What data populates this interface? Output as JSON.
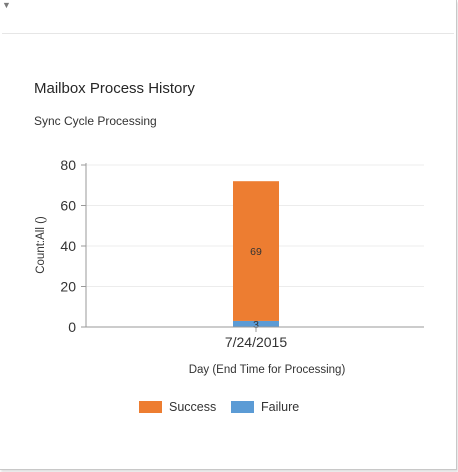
{
  "card": {
    "title": "Mailbox Process History",
    "subtitle": "Sync Cycle Processing"
  },
  "legend": [
    {
      "label": "Success",
      "color": "#ed7d31"
    },
    {
      "label": "Failure",
      "color": "#5b9bd5"
    }
  ],
  "chart_data": {
    "type": "bar",
    "stacked": true,
    "title": "",
    "xlabel": "Day (End Time for Processing)",
    "ylabel": "Count:All ()",
    "categories": [
      "7/24/2015"
    ],
    "series": [
      {
        "name": "Failure",
        "values": [
          3
        ],
        "color": "#5b9bd5"
      },
      {
        "name": "Success",
        "values": [
          69
        ],
        "color": "#ed7d31"
      }
    ],
    "ylim": [
      0,
      80
    ],
    "yticks": [
      0,
      20,
      40,
      60,
      80
    ],
    "grid": true,
    "legend_position": "bottom"
  }
}
